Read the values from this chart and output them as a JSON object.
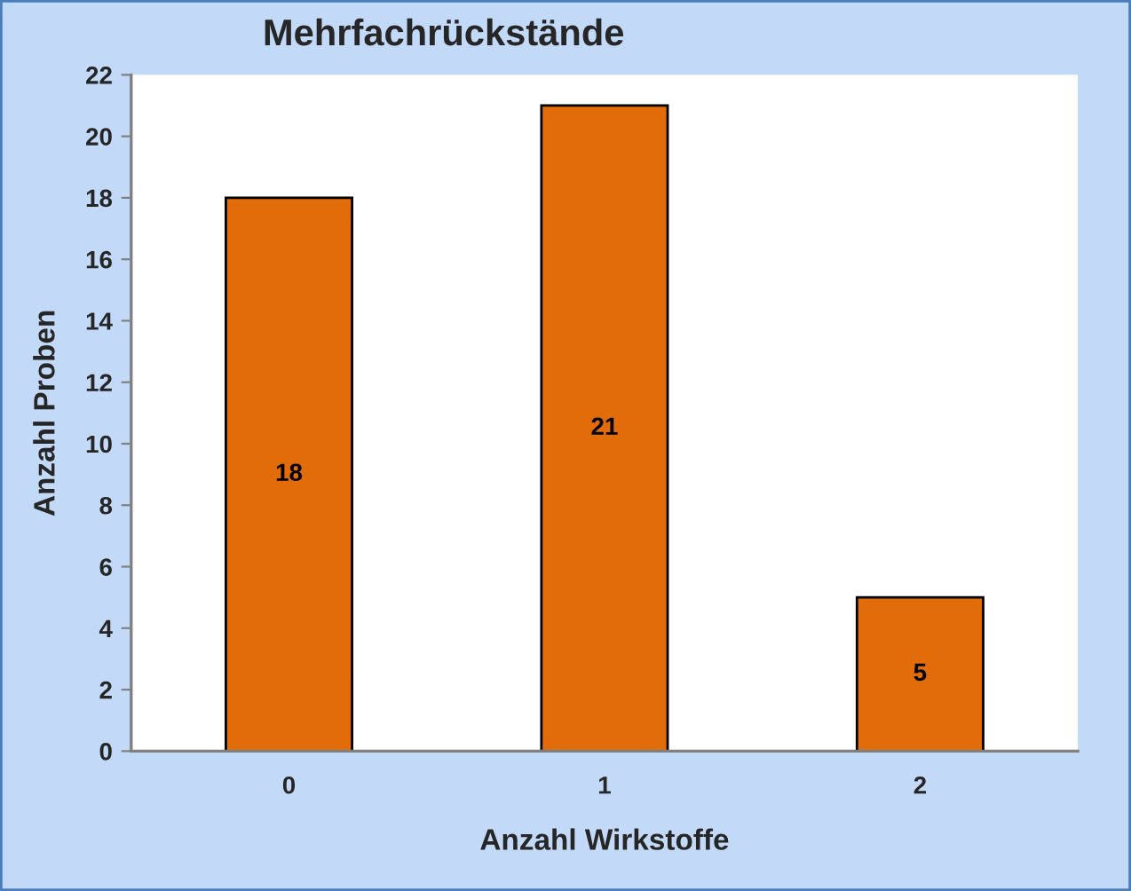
{
  "chart_data": {
    "type": "bar",
    "title": "Mehrfachrückstände",
    "xlabel": "Anzahl Wirkstoffe",
    "ylabel": "Anzahl Proben",
    "categories": [
      "0",
      "1",
      "2"
    ],
    "values": [
      18,
      21,
      5
    ],
    "color": "#e36c0a",
    "ylim": [
      0,
      22
    ],
    "yticks": [
      0,
      2,
      4,
      6,
      8,
      10,
      12,
      14,
      16,
      18,
      20,
      22
    ],
    "grid": false,
    "legend": false,
    "data_labels": true
  }
}
